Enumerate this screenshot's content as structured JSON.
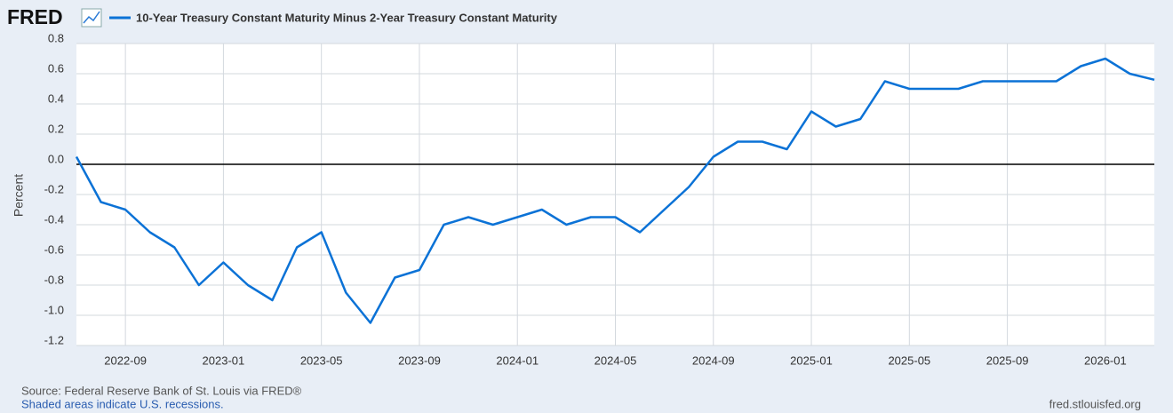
{
  "chart_data": {
    "type": "line",
    "logo": "FRED",
    "ylabel": "Percent",
    "source": "Source: Federal Reserve Bank of St. Louis via FRED®",
    "note": "Shaded areas indicate U.S. recessions.",
    "url": "fred.stlouisfed.org",
    "x": [
      "2022-07",
      "2022-08",
      "2022-09",
      "2022-10",
      "2022-11",
      "2022-12",
      "2023-01",
      "2023-02",
      "2023-03",
      "2023-04",
      "2023-05",
      "2023-06",
      "2023-07",
      "2023-08",
      "2023-09",
      "2023-10",
      "2023-11",
      "2023-12",
      "2024-01",
      "2024-02",
      "2024-03",
      "2024-04",
      "2024-05",
      "2024-06",
      "2024-07",
      "2024-08",
      "2024-09",
      "2024-10",
      "2024-11",
      "2024-12",
      "2025-01",
      "2025-02",
      "2025-03",
      "2025-04",
      "2025-05",
      "2025-06",
      "2025-07",
      "2025-08",
      "2025-09",
      "2025-10",
      "2025-11",
      "2025-12",
      "2026-01",
      "2026-02",
      "2026-03"
    ],
    "series": [
      {
        "name": "10-Year Treasury Constant Maturity Minus 2-Year Treasury Constant Maturity",
        "color": "#0b72d6",
        "values": [
          0.05,
          -0.25,
          -0.3,
          -0.45,
          -0.55,
          -0.8,
          -0.65,
          -0.8,
          -0.9,
          -0.55,
          -0.45,
          -0.85,
          -1.05,
          -0.75,
          -0.7,
          -0.4,
          -0.35,
          -0.4,
          -0.35,
          -0.3,
          -0.4,
          -0.35,
          -0.35,
          -0.45,
          -0.3,
          -0.15,
          0.05,
          0.15,
          0.15,
          0.1,
          0.35,
          0.25,
          0.3,
          0.55,
          0.5,
          0.5,
          0.5,
          0.55,
          0.55,
          0.55,
          0.55,
          0.65,
          0.7,
          0.6,
          0.56
        ]
      }
    ],
    "xlim": [
      "2022-07",
      "2026-03"
    ],
    "xticks": [
      "2022-09",
      "2023-01",
      "2023-05",
      "2023-09",
      "2024-01",
      "2024-05",
      "2024-09",
      "2025-01",
      "2025-05",
      "2025-09",
      "2026-01"
    ],
    "ylim": [
      -1.2,
      0.8
    ],
    "yticks": [
      0.8,
      0.6,
      0.4,
      0.2,
      {
        "value": 0,
        "label": "0.0"
      },
      -0.2,
      -0.4,
      -0.6,
      -0.8,
      {
        "value": -1,
        "label": "-1.0"
      },
      -1.2
    ],
    "grid": true
  }
}
